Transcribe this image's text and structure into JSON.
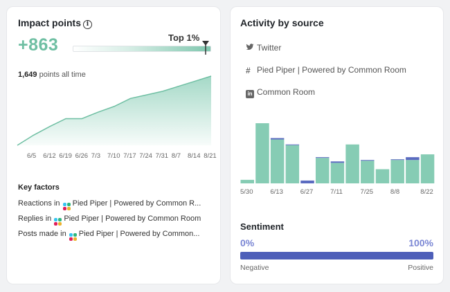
{
  "impact": {
    "title": "Impact points",
    "score": "+863",
    "percentile_label": "Top 1%",
    "alltime_value": "1,649",
    "alltime_suffix": " points all time",
    "x_labels": [
      "6/5",
      "6/12",
      "6/19",
      "6/26",
      "7/3",
      "7/10",
      "7/17",
      "7/24",
      "7/31",
      "8/7",
      "8/14",
      "8/21"
    ],
    "cumulative": [
      0,
      28,
      52,
      74,
      74,
      92,
      108,
      130,
      140,
      150,
      164,
      178,
      192
    ]
  },
  "key_factors": {
    "title": "Key factors",
    "rows": [
      {
        "prefix": "Reactions in",
        "source": "Pied Piper | Powered by Common R..."
      },
      {
        "prefix": "Replies in",
        "source": "Pied Piper | Powered by Common Room"
      },
      {
        "prefix": "Posts made in",
        "source": "Pied Piper | Powered by Common..."
      }
    ]
  },
  "activity": {
    "title": "Activity by source",
    "sources": [
      {
        "icon": "twitter-icon",
        "label": "Twitter"
      },
      {
        "icon": "slack-hash-icon",
        "label": "Pied Piper | Powered by Common Room"
      },
      {
        "icon": "linkedin-icon",
        "label": "Common Room"
      }
    ],
    "x_labels": [
      "5/30",
      "6/13",
      "6/27",
      "7/11",
      "7/25",
      "8/8",
      "8/22"
    ],
    "colors": {
      "slack": "#86ccb4",
      "twitter": "#5b6bc0"
    }
  },
  "chart_data": {
    "type": "bar",
    "categories": [
      "5/30",
      "6/6",
      "6/13",
      "6/20",
      "6/27",
      "7/4",
      "7/11",
      "7/18",
      "7/25",
      "8/1",
      "8/8",
      "8/15",
      "8/22"
    ],
    "series": [
      {
        "values": [
          5,
          85,
          62,
          54,
          0,
          36,
          29,
          55,
          32,
          20,
          33,
          33,
          41
        ]
      },
      {
        "values": [
          0,
          0,
          2,
          1,
          4,
          1,
          2,
          0,
          1,
          0,
          1,
          4,
          0
        ]
      }
    ]
  },
  "sentiment": {
    "title": "Sentiment",
    "left_value": "0%",
    "right_value": "100%",
    "left_label": "Negative",
    "right_label": "Positive"
  }
}
